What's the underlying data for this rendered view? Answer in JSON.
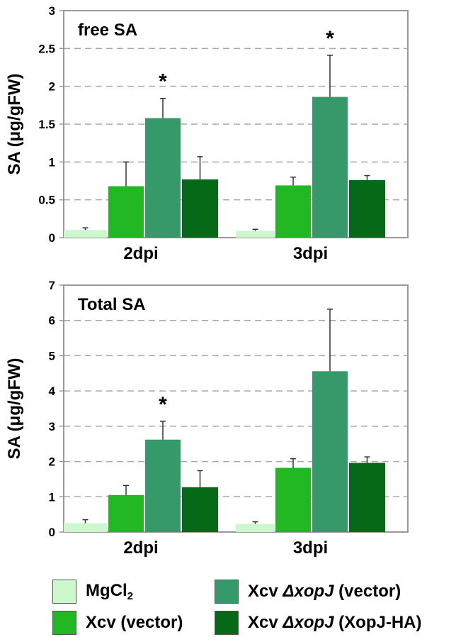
{
  "colors": {
    "MgCl2": "#cdf8cd",
    "Xcv (vector)": "#22b823",
    "Xcv ΔxopJ (vector)": "#36996a",
    "Xcv ΔxopJ (XopJ-HA)": "#056918",
    "axis": "#999999",
    "grid": "#a8a8a8"
  },
  "chart_data": [
    {
      "type": "bar",
      "title": "free SA",
      "ylabel": "SA (μg/gFW)",
      "xlabel": "",
      "categories": [
        "2dpi",
        "3dpi"
      ],
      "ylim": [
        0,
        3
      ],
      "yticks": [
        "0",
        "0.5",
        "1",
        "1.5",
        "2",
        "2.5",
        "3"
      ],
      "grid": "horizontal dashed",
      "series": [
        {
          "name": "MgCl2",
          "values": [
            0.1,
            0.09
          ],
          "errors": [
            0.03,
            0.02
          ]
        },
        {
          "name": "Xcv (vector)",
          "values": [
            0.68,
            0.69
          ],
          "errors": [
            0.32,
            0.11
          ]
        },
        {
          "name": "Xcv ΔxopJ (vector)",
          "values": [
            1.58,
            1.86
          ],
          "errors": [
            0.26,
            0.55
          ]
        },
        {
          "name": "Xcv ΔxopJ (XopJ-HA)",
          "values": [
            0.77,
            0.76
          ],
          "errors": [
            0.3,
            0.06
          ]
        }
      ],
      "annotations": [
        {
          "text": "*",
          "category": "2dpi",
          "series": "Xcv ΔxopJ (vector)"
        },
        {
          "text": "*",
          "category": "3dpi",
          "series": "Xcv ΔxopJ (vector)"
        }
      ]
    },
    {
      "type": "bar",
      "title": "Total SA",
      "ylabel": "SA (μg/gFW)",
      "xlabel": "",
      "categories": [
        "2dpi",
        "3dpi"
      ],
      "ylim": [
        0,
        7
      ],
      "yticks": [
        "0",
        "1",
        "2",
        "3",
        "4",
        "5",
        "6",
        "7"
      ],
      "grid": "horizontal dashed",
      "series": [
        {
          "name": "MgCl2",
          "values": [
            0.25,
            0.23
          ],
          "errors": [
            0.1,
            0.06
          ]
        },
        {
          "name": "Xcv (vector)",
          "values": [
            1.05,
            1.82
          ],
          "errors": [
            0.27,
            0.26
          ]
        },
        {
          "name": "Xcv ΔxopJ (vector)",
          "values": [
            2.62,
            4.56
          ],
          "errors": [
            0.52,
            1.76
          ]
        },
        {
          "name": "Xcv ΔxopJ (XopJ-HA)",
          "values": [
            1.27,
            1.96
          ],
          "errors": [
            0.47,
            0.17
          ]
        }
      ],
      "annotations": [
        {
          "text": "*",
          "category": "2dpi",
          "series": "Xcv ΔxopJ (vector)"
        }
      ]
    }
  ],
  "legend": [
    {
      "series": "MgCl2",
      "text": "MgCl",
      "sub": "2",
      "italic": "",
      "tail": ""
    },
    {
      "series": "Xcv ΔxopJ (vector)",
      "text": "Xcv ",
      "sub": "",
      "italic": "ΔxopJ",
      "tail": " (vector)"
    },
    {
      "series": "Xcv (vector)",
      "text": "Xcv (vector)",
      "sub": "",
      "italic": "",
      "tail": ""
    },
    {
      "series": "Xcv ΔxopJ (XopJ-HA)",
      "text": "Xcv ",
      "sub": "",
      "italic": "ΔxopJ",
      "tail": " (XopJ-HA)"
    }
  ]
}
